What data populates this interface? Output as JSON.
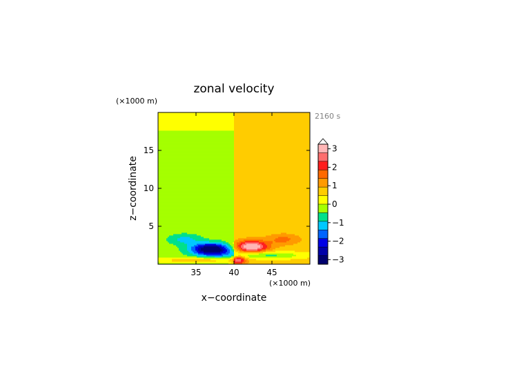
{
  "chart_data": {
    "type": "heatmap",
    "title": "zonal velocity",
    "time_label": "2160 s",
    "xlabel": "x−coordinate",
    "ylabel": "z−coordinate",
    "x_unit_label": "(×1000 m)",
    "y_unit_label": "(×1000 m)",
    "xlim": [
      30,
      50
    ],
    "ylim": [
      0,
      20
    ],
    "xticks": [
      35,
      40,
      45
    ],
    "yticks": [
      5,
      10,
      15
    ],
    "colorbar": {
      "ticks": [
        3,
        2,
        1,
        0,
        -1,
        -2,
        -3
      ],
      "tick_labels": [
        "3",
        "2",
        "1",
        "0",
        "−1",
        "−2",
        "−3"
      ],
      "levels": [
        3.25,
        2.75,
        2.25,
        1.75,
        1.25,
        0.75,
        0.25,
        -0.25,
        -0.75,
        -1.25,
        -1.75,
        -2.25,
        -2.75,
        -3.25
      ],
      "colors": [
        "#ffb6b6",
        "#ff6e6e",
        "#ff1e1e",
        "#ff6a00",
        "#ff9a00",
        "#ffcc00",
        "#ffff00",
        "#a5ff00",
        "#00e08a",
        "#00c8ff",
        "#0064ff",
        "#0000e6",
        "#0000a8",
        "#00006e"
      ],
      "extend": "max"
    },
    "grid": false,
    "legend": "right"
  }
}
